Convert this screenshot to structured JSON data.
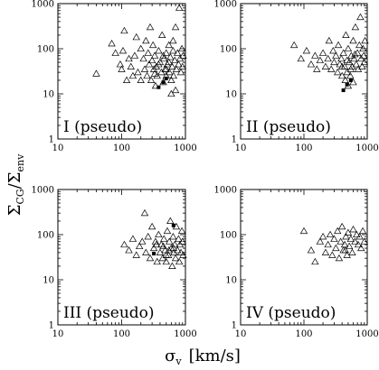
{
  "figure": {
    "ylabel_main": "Σ",
    "ylabel_sub1": "CG",
    "ylabel_sep": "/Σ",
    "ylabel_sub2": "env",
    "xlabel_main": "σ",
    "xlabel_sub": "v",
    "xlabel_unit": "[km/s]"
  },
  "chart_data": [
    {
      "type": "scatter",
      "panel": "I (pseudo)",
      "xscale": "log",
      "yscale": "log",
      "xlim": [
        10,
        1000
      ],
      "ylim": [
        1,
        1000
      ],
      "xticks": [
        "10",
        "100",
        "1000"
      ],
      "yticks": [
        "1",
        "10",
        "100",
        "1000"
      ],
      "series": [
        {
          "marker": "open-triangle",
          "points": [
            [
              40,
              28
            ],
            [
              70,
              130
            ],
            [
              80,
              80
            ],
            [
              95,
              45
            ],
            [
              100,
              35
            ],
            [
              105,
              90
            ],
            [
              110,
              250
            ],
            [
              120,
              20
            ],
            [
              130,
              60
            ],
            [
              140,
              40
            ],
            [
              150,
              25
            ],
            [
              160,
              70
            ],
            [
              170,
              180
            ],
            [
              180,
              30
            ],
            [
              200,
              20
            ],
            [
              200,
              100
            ],
            [
              220,
              60
            ],
            [
              230,
              35
            ],
            [
              240,
              150
            ],
            [
              250,
              25
            ],
            [
              260,
              80
            ],
            [
              270,
              45
            ],
            [
              280,
              300
            ],
            [
              290,
              20
            ],
            [
              300,
              55
            ],
            [
              310,
              120
            ],
            [
              320,
              35
            ],
            [
              330,
              70
            ],
            [
              340,
              15
            ],
            [
              350,
              40
            ],
            [
              360,
              25
            ],
            [
              380,
              90
            ],
            [
              400,
              50
            ],
            [
              420,
              30
            ],
            [
              430,
              200
            ],
            [
              450,
              18
            ],
            [
              460,
              60
            ],
            [
              480,
              35
            ],
            [
              500,
              80
            ],
            [
              500,
              25
            ],
            [
              520,
              45
            ],
            [
              550,
              120
            ],
            [
              560,
              30
            ],
            [
              580,
              65
            ],
            [
              600,
              20
            ],
            [
              620,
              40
            ],
            [
              640,
              150
            ],
            [
              650,
              25
            ],
            [
              680,
              55
            ],
            [
              700,
              300
            ],
            [
              720,
              35
            ],
            [
              750,
              80
            ],
            [
              780,
              45
            ],
            [
              800,
              800
            ],
            [
              820,
              60
            ],
            [
              850,
              30
            ],
            [
              880,
              100
            ],
            [
              900,
              40
            ],
            [
              920,
              70
            ],
            [
              700,
              12
            ],
            [
              600,
              10
            ],
            [
              450,
              70
            ],
            [
              380,
              45
            ],
            [
              330,
              28
            ],
            [
              550,
              50
            ],
            [
              500,
              35
            ],
            [
              640,
              90
            ]
          ]
        },
        {
          "marker": "filled-square",
          "points": [
            [
              380,
              14
            ],
            [
              450,
              18
            ],
            [
              500,
              22
            ]
          ]
        }
      ]
    },
    {
      "type": "scatter",
      "panel": "II (pseudo)",
      "xscale": "log",
      "yscale": "log",
      "xlim": [
        10,
        1000
      ],
      "ylim": [
        1,
        1000
      ],
      "xticks": [
        "10",
        "100",
        "1000"
      ],
      "yticks": [
        "1",
        "10",
        "100",
        "1000"
      ],
      "series": [
        {
          "marker": "open-triangle",
          "points": [
            [
              70,
              120
            ],
            [
              90,
              60
            ],
            [
              110,
              90
            ],
            [
              130,
              45
            ],
            [
              150,
              70
            ],
            [
              160,
              35
            ],
            [
              180,
              55
            ],
            [
              200,
              80
            ],
            [
              220,
              40
            ],
            [
              240,
              60
            ],
            [
              250,
              150
            ],
            [
              270,
              35
            ],
            [
              290,
              90
            ],
            [
              300,
              50
            ],
            [
              320,
              70
            ],
            [
              340,
              30
            ],
            [
              350,
              120
            ],
            [
              370,
              45
            ],
            [
              390,
              60
            ],
            [
              400,
              25
            ],
            [
              420,
              80
            ],
            [
              440,
              40
            ],
            [
              460,
              200
            ],
            [
              480,
              30
            ],
            [
              500,
              100
            ],
            [
              520,
              50
            ],
            [
              540,
              25
            ],
            [
              560,
              70
            ],
            [
              580,
              40
            ],
            [
              600,
              150
            ],
            [
              620,
              60
            ],
            [
              650,
              300
            ],
            [
              670,
              45
            ],
            [
              700,
              80
            ],
            [
              720,
              35
            ],
            [
              750,
              120
            ],
            [
              780,
              500
            ],
            [
              800,
              60
            ],
            [
              830,
              40
            ],
            [
              860,
              100
            ],
            [
              880,
              70
            ],
            [
              900,
              50
            ],
            [
              920,
              150
            ],
            [
              500,
              15
            ],
            [
              450,
              20
            ],
            [
              600,
              18
            ],
            [
              550,
              35
            ],
            [
              400,
              40
            ],
            [
              480,
              55
            ],
            [
              640,
              75
            ]
          ]
        },
        {
          "marker": "filled-square",
          "points": [
            [
              420,
              12
            ],
            [
              480,
              16
            ],
            [
              550,
              20
            ]
          ]
        }
      ]
    },
    {
      "type": "scatter",
      "panel": "III (pseudo)",
      "xscale": "log",
      "yscale": "log",
      "xlim": [
        10,
        1000
      ],
      "ylim": [
        1,
        1000
      ],
      "xticks": [
        "10",
        "100",
        "1000"
      ],
      "yticks": [
        "1",
        "10",
        "100",
        "1000"
      ],
      "series": [
        {
          "marker": "open-triangle",
          "points": [
            [
              110,
              60
            ],
            [
              130,
              45
            ],
            [
              150,
              80
            ],
            [
              170,
              35
            ],
            [
              190,
              55
            ],
            [
              210,
              70
            ],
            [
              230,
              300
            ],
            [
              240,
              40
            ],
            [
              260,
              90
            ],
            [
              280,
              30
            ],
            [
              300,
              150
            ],
            [
              320,
              50
            ],
            [
              340,
              70
            ],
            [
              360,
              25
            ],
            [
              380,
              100
            ],
            [
              400,
              40
            ],
            [
              420,
              60
            ],
            [
              440,
              30
            ],
            [
              460,
              80
            ],
            [
              480,
              45
            ],
            [
              500,
              25
            ],
            [
              520,
              120
            ],
            [
              540,
              35
            ],
            [
              560,
              70
            ],
            [
              580,
              200
            ],
            [
              600,
              50
            ],
            [
              620,
              20
            ],
            [
              640,
              90
            ],
            [
              660,
              40
            ],
            [
              680,
              60
            ],
            [
              700,
              30
            ],
            [
              720,
              150
            ],
            [
              750,
              45
            ],
            [
              780,
              80
            ],
            [
              800,
              25
            ],
            [
              820,
              60
            ],
            [
              850,
              40
            ],
            [
              880,
              120
            ],
            [
              900,
              70
            ],
            [
              920,
              35
            ],
            [
              450,
              55
            ],
            [
              550,
              45
            ],
            [
              350,
              60
            ],
            [
              650,
              50
            ],
            [
              500,
              35
            ]
          ]
        },
        {
          "marker": "filled-square",
          "points": [
            [
              320,
              38
            ],
            [
              650,
              160
            ]
          ]
        }
      ]
    },
    {
      "type": "scatter",
      "panel": "IV (pseudo)",
      "xscale": "log",
      "yscale": "log",
      "xlim": [
        10,
        1000
      ],
      "ylim": [
        1,
        1000
      ],
      "xticks": [
        "10",
        "100",
        "1000"
      ],
      "yticks": [
        "1",
        "10",
        "100",
        "1000"
      ],
      "series": [
        {
          "marker": "open-triangle",
          "points": [
            [
              100,
              120
            ],
            [
              130,
              45
            ],
            [
              150,
              25
            ],
            [
              180,
              70
            ],
            [
              200,
              90
            ],
            [
              220,
              40
            ],
            [
              240,
              60
            ],
            [
              260,
              100
            ],
            [
              280,
              35
            ],
            [
              300,
              80
            ],
            [
              320,
              50
            ],
            [
              340,
              120
            ],
            [
              360,
              30
            ],
            [
              380,
              70
            ],
            [
              400,
              150
            ],
            [
              420,
              45
            ],
            [
              440,
              60
            ],
            [
              460,
              90
            ],
            [
              480,
              35
            ],
            [
              500,
              110
            ],
            [
              520,
              55
            ],
            [
              550,
              80
            ],
            [
              580,
              40
            ],
            [
              600,
              130
            ],
            [
              640,
              70
            ],
            [
              680,
              100
            ],
            [
              720,
              60
            ],
            [
              760,
              90
            ],
            [
              800,
              50
            ],
            [
              850,
              120
            ],
            [
              900,
              70
            ],
            [
              450,
              45
            ]
          ]
        }
      ]
    }
  ]
}
